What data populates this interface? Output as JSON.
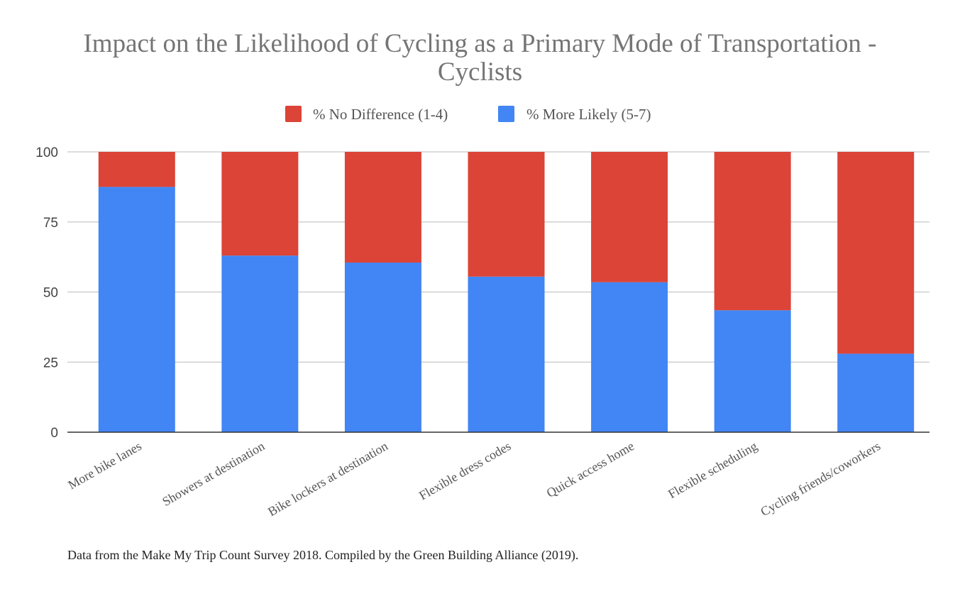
{
  "chart_data": {
    "type": "bar",
    "stacked": true,
    "title_lines": [
      "Impact on the Likelihood of Cycling as a Primary Mode of Transportation -",
      "Cyclists"
    ],
    "categories": [
      "More bike lanes",
      "Showers at destination",
      "Bike lockers at destination",
      "Flexible dress codes",
      "Quick access home",
      "Flexible scheduling",
      "Cycling friends/coworkers"
    ],
    "series": [
      {
        "name": "% More Likely (5-7)",
        "color": "#4285f4",
        "values": [
          87.5,
          63,
          60.5,
          55.5,
          53.5,
          43.5,
          28
        ]
      },
      {
        "name": "% No Difference (1-4)",
        "color": "#db4437",
        "values": [
          12.5,
          37,
          39.5,
          44.5,
          46.5,
          56.5,
          72
        ]
      }
    ],
    "legend_order": [
      "% No Difference (1-4)",
      "% More Likely (5-7)"
    ],
    "legend_position": "top-center",
    "ylim": [
      0,
      100
    ],
    "yticks": [
      "0",
      "25",
      "50",
      "75",
      "100"
    ],
    "grid": true,
    "xlabel": "",
    "ylabel": ""
  },
  "source_note": "Data from the Make My Trip Count Survey 2018. Compiled by the Green Building Alliance (2019)."
}
